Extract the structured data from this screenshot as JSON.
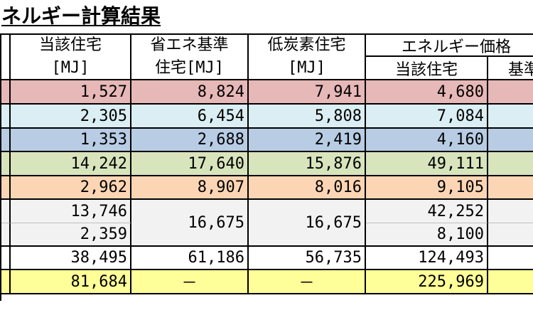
{
  "title": "ネルギー計算結果",
  "headers": {
    "col_current": "当該住宅",
    "col_current_unit": "[MJ]",
    "col_standard_line1": "省エネ基準",
    "col_standard_line2": "住宅[MJ]",
    "col_lowcarbon": "低炭素住宅",
    "col_lowcarbon_unit": "[MJ]",
    "price_group": "エネルギー価格",
    "price_current": "当該住宅",
    "price_standard": "基準"
  },
  "rows": [
    {
      "current": "1,527",
      "standard": "8,824",
      "lowcarbon": "7,941",
      "price": "4,680"
    },
    {
      "current": "2,305",
      "standard": "6,454",
      "lowcarbon": "5,808",
      "price": "7,084"
    },
    {
      "current": "1,353",
      "standard": "2,688",
      "lowcarbon": "2,419",
      "price": "4,160"
    },
    {
      "current": "14,242",
      "standard": "17,640",
      "lowcarbon": "15,876",
      "price": "49,111"
    },
    {
      "current": "2,962",
      "standard": "8,907",
      "lowcarbon": "8,016",
      "price": "9,105"
    },
    {
      "current": "13,746",
      "standard": "16,675",
      "lowcarbon": "16,675",
      "price": "42,252"
    },
    {
      "current": "2,359",
      "price": "8,100"
    },
    {
      "current": "38,495",
      "standard": "61,186",
      "lowcarbon": "56,735",
      "price": "124,493"
    },
    {
      "current": "81,684",
      "standard": "－",
      "lowcarbon": "－",
      "price": "225,969"
    }
  ],
  "colors": {
    "row1": "#e6b8b7",
    "row2": "#daeef3",
    "row3": "#b8cce4",
    "row4": "#d8e4bc",
    "row5": "#fcd5b4",
    "row6": "#f2f2f2",
    "row8": "#ffffff",
    "row9": "#ffff99"
  }
}
